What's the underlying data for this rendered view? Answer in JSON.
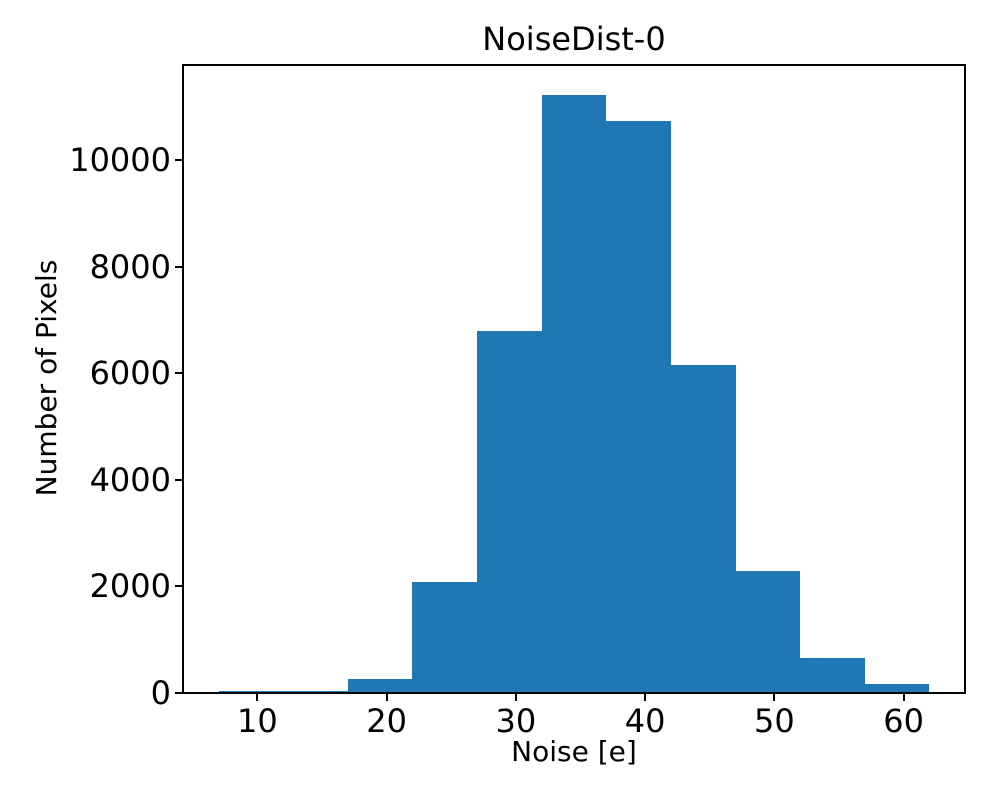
{
  "chart_data": {
    "type": "bar",
    "subtype": "histogram",
    "title": "NoiseDist-0",
    "xlabel": "Noise [e]",
    "ylabel": "Number of Pixels",
    "bin_edges": [
      7,
      12,
      17,
      22,
      27,
      32,
      37,
      42,
      47,
      52,
      57,
      62
    ],
    "counts": [
      30,
      30,
      270,
      2080,
      6800,
      11230,
      10730,
      6150,
      2290,
      650,
      165
    ],
    "x_ticks": [
      10,
      20,
      30,
      40,
      50,
      60
    ],
    "y_ticks": [
      0,
      2000,
      4000,
      6000,
      8000,
      10000
    ],
    "xlim": [
      4.25,
      64.75
    ],
    "ylim": [
      0,
      11790
    ],
    "bar_color": "#1f77b4",
    "axis_color": "#000000",
    "background_color": "#ffffff",
    "grid": false,
    "legend_position": "none"
  }
}
